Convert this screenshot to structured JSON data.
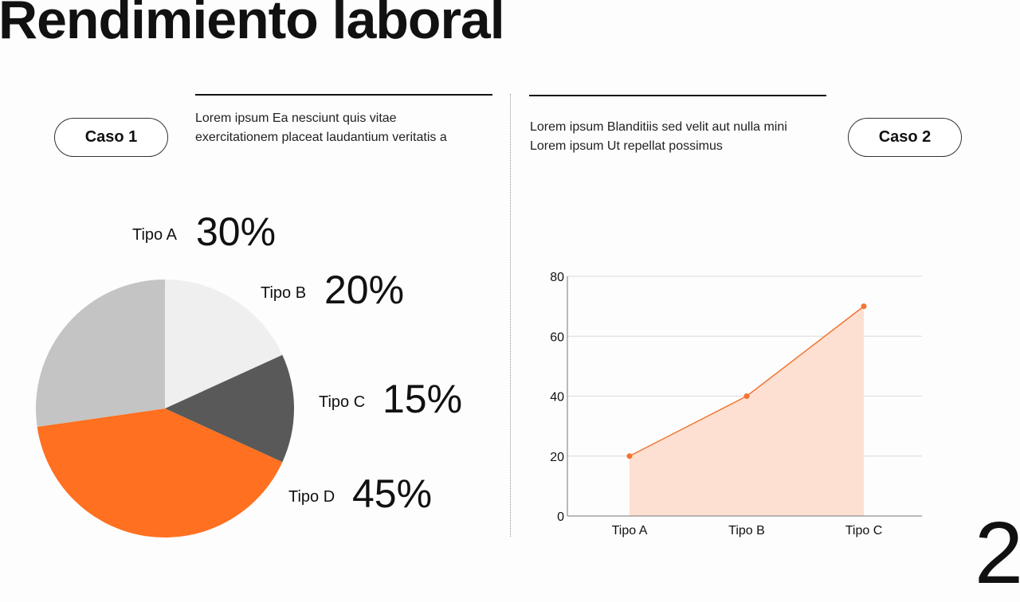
{
  "title": "Rendimiento laboral",
  "case1": {
    "label": "Caso 1",
    "description": "Lorem ipsum Ea nesciunt quis vitae exercitationem placeat laudantium veritatis a"
  },
  "case2": {
    "label": "Caso 2",
    "description": "Lorem ipsum Blanditiis sed velit aut nulla mini Lorem ipsum Ut repellat possimus"
  },
  "page_number": "2",
  "chart_data": [
    {
      "type": "pie",
      "start": "top",
      "direction": "clockwise",
      "slices": [
        {
          "label": "Tipo B",
          "value": 20,
          "display": "20%",
          "color": "#efefef"
        },
        {
          "label": "Tipo C",
          "value": 15,
          "display": "15%",
          "color": "#595959"
        },
        {
          "label": "Tipo D",
          "value": 45,
          "display": "45%",
          "color": "#ff7020"
        },
        {
          "label": "Tipo A",
          "value": 30,
          "display": "30%",
          "color": "#c4c4c4"
        }
      ]
    },
    {
      "type": "area",
      "categories": [
        "Tipo A",
        "Tipo B",
        "Tipo C"
      ],
      "values": [
        20,
        40,
        70
      ],
      "ylim": [
        0,
        80
      ],
      "yticks": [
        "0",
        "20",
        "40",
        "60",
        "80"
      ],
      "grid": true,
      "line_color": "#f37432",
      "fill_color": "#fde0d2"
    }
  ]
}
